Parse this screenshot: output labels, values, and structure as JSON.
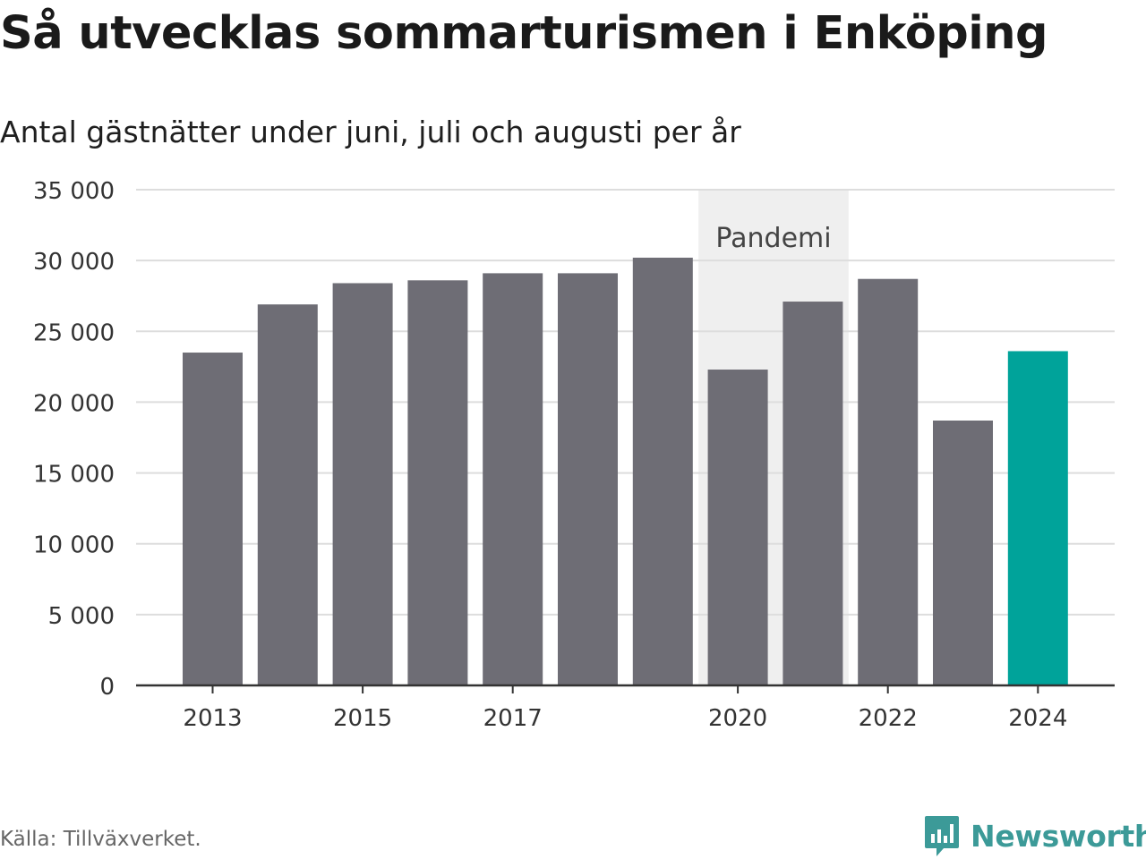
{
  "chart_data": {
    "type": "bar",
    "title": "Så utvecklas sommarturismen i Enköping",
    "subtitle": "Antal gästnätter under juni, juli och augusti per år",
    "categories": [
      "2013",
      "2014",
      "2015",
      "2016",
      "2017",
      "2018",
      "2019",
      "2020",
      "2021",
      "2022",
      "2023",
      "2024"
    ],
    "values": [
      23500,
      26900,
      28400,
      28600,
      29100,
      29100,
      30200,
      22300,
      27100,
      28700,
      18700,
      23600
    ],
    "highlight_category": "2024",
    "colors": {
      "default_bar": "#6e6d75",
      "highlight_bar": "#00a39a",
      "band": "#efefef",
      "grid": "#dddddd",
      "axis": "#333333"
    },
    "ylim": [
      0,
      35000
    ],
    "yticks": [
      0,
      5000,
      10000,
      15000,
      20000,
      25000,
      30000,
      35000
    ],
    "ytick_labels": [
      "0",
      "5 000",
      "10 000",
      "15 000",
      "20 000",
      "25 000",
      "30 000",
      "35 000"
    ],
    "xtick_labels": [
      "2013",
      "2015",
      "2017",
      "2020",
      "2022",
      "2024"
    ],
    "grid": true,
    "annotation": {
      "label": "Pandemi",
      "from_category": "2020",
      "to_category": "2021"
    },
    "source": "Källa: Tillväxverket.",
    "brand": "Newsworthy"
  }
}
